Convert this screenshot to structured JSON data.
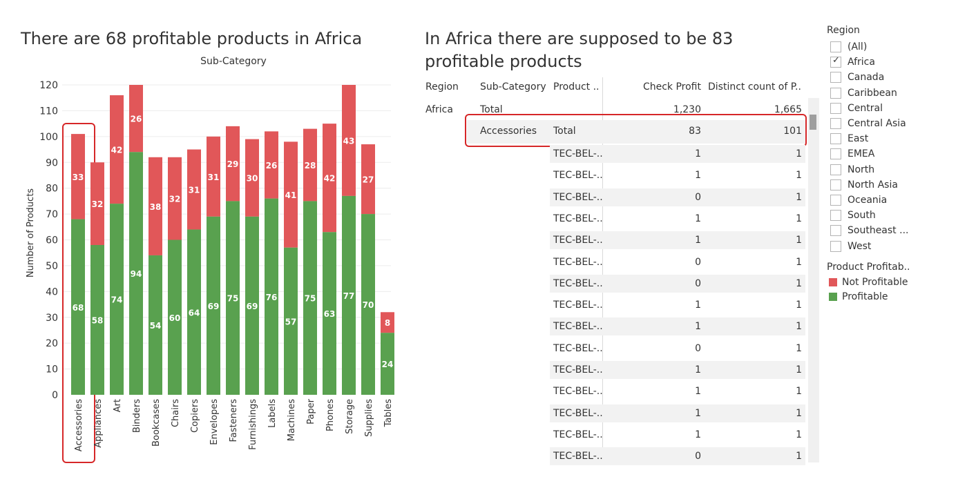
{
  "left_title": "There are 68 profitable products in Africa",
  "right_title": "In Africa there are supposed to be 83 profitable products",
  "colors": {
    "not_profitable": "#e15759",
    "profitable": "#59a14f",
    "highlight": "#d62728"
  },
  "chart_data": {
    "type": "bar",
    "stacked": true,
    "title": "",
    "column_header": "Sub-Category",
    "ylabel": "Number of Products",
    "ylim": [
      0,
      120
    ],
    "yticks": [
      "0",
      "10",
      "20",
      "30",
      "40",
      "50",
      "60",
      "70",
      "80",
      "90",
      "100",
      "110",
      "120"
    ],
    "categories": [
      "Accessories",
      "Appliances",
      "Art",
      "Binders",
      "Bookcases",
      "Chairs",
      "Copiers",
      "Envelopes",
      "Fasteners",
      "Furnishings",
      "Labels",
      "Machines",
      "Paper",
      "Phones",
      "Storage",
      "Supplies",
      "Tables"
    ],
    "series": [
      {
        "name": "Profitable",
        "values": [
          68,
          58,
          74,
          94,
          54,
          60,
          64,
          69,
          75,
          69,
          76,
          57,
          75,
          63,
          77,
          70,
          24
        ]
      },
      {
        "name": "Not Profitable",
        "values": [
          33,
          32,
          42,
          26,
          38,
          32,
          31,
          31,
          29,
          30,
          26,
          41,
          28,
          42,
          43,
          27,
          8
        ]
      }
    ],
    "grid": true,
    "highlighted_category": "Accessories"
  },
  "table": {
    "headers": {
      "region": "Region",
      "subcategory": "Sub-Category",
      "product": "Product ..",
      "check_profit": "Check Profit",
      "distinct_count": "Distinct count of P.."
    },
    "region_value": "Africa",
    "total_row": {
      "subcategory": "Total",
      "check_profit": "1,230",
      "distinct_count": "1,665"
    },
    "accessories_row": {
      "subcategory": "Accessories",
      "product": "Total",
      "check_profit": "83",
      "distinct_count": "101"
    },
    "rows": [
      {
        "product": "TEC-BEL-..",
        "check_profit": "1",
        "distinct_count": "1"
      },
      {
        "product": "TEC-BEL-..",
        "check_profit": "1",
        "distinct_count": "1"
      },
      {
        "product": "TEC-BEL-..",
        "check_profit": "0",
        "distinct_count": "1"
      },
      {
        "product": "TEC-BEL-..",
        "check_profit": "1",
        "distinct_count": "1"
      },
      {
        "product": "TEC-BEL-..",
        "check_profit": "1",
        "distinct_count": "1"
      },
      {
        "product": "TEC-BEL-..",
        "check_profit": "0",
        "distinct_count": "1"
      },
      {
        "product": "TEC-BEL-..",
        "check_profit": "0",
        "distinct_count": "1"
      },
      {
        "product": "TEC-BEL-..",
        "check_profit": "1",
        "distinct_count": "1"
      },
      {
        "product": "TEC-BEL-..",
        "check_profit": "1",
        "distinct_count": "1"
      },
      {
        "product": "TEC-BEL-..",
        "check_profit": "0",
        "distinct_count": "1"
      },
      {
        "product": "TEC-BEL-..",
        "check_profit": "1",
        "distinct_count": "1"
      },
      {
        "product": "TEC-BEL-..",
        "check_profit": "1",
        "distinct_count": "1"
      },
      {
        "product": "TEC-BEL-..",
        "check_profit": "1",
        "distinct_count": "1"
      },
      {
        "product": "TEC-BEL-..",
        "check_profit": "1",
        "distinct_count": "1"
      },
      {
        "product": "TEC-BEL-..",
        "check_profit": "0",
        "distinct_count": "1"
      }
    ]
  },
  "region_filter": {
    "title": "Region",
    "items": [
      {
        "label": "(All)",
        "checked": false
      },
      {
        "label": "Africa",
        "checked": true
      },
      {
        "label": "Canada",
        "checked": false
      },
      {
        "label": "Caribbean",
        "checked": false
      },
      {
        "label": "Central",
        "checked": false
      },
      {
        "label": "Central Asia",
        "checked": false
      },
      {
        "label": "East",
        "checked": false
      },
      {
        "label": "EMEA",
        "checked": false
      },
      {
        "label": "North",
        "checked": false
      },
      {
        "label": "North Asia",
        "checked": false
      },
      {
        "label": "Oceania",
        "checked": false
      },
      {
        "label": "South",
        "checked": false
      },
      {
        "label": "Southeast ...",
        "checked": false
      },
      {
        "label": "West",
        "checked": false
      }
    ]
  },
  "color_legend": {
    "title": "Product Profitab..",
    "items": [
      {
        "label": "Not Profitable",
        "color": "#e15759"
      },
      {
        "label": "Profitable",
        "color": "#59a14f"
      }
    ]
  }
}
